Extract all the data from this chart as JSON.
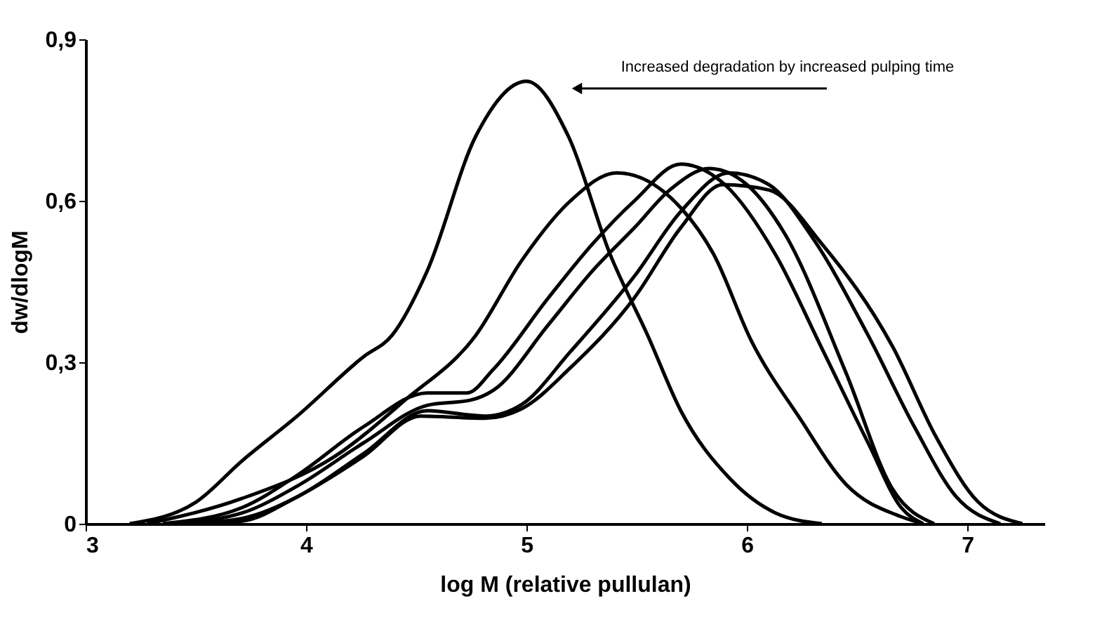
{
  "chart_data": {
    "type": "line",
    "xlabel": "log M (relative pullulan)",
    "ylabel": "dw/dlogM",
    "annotations": [
      "Increased degradation by increased pulping time"
    ],
    "xlim": [
      3,
      7.35
    ],
    "ylim": [
      0,
      0.9
    ],
    "xticks": [
      3,
      4,
      5,
      6,
      7
    ],
    "yticks": [
      0,
      {
        "value": 0.3,
        "label": "0,3"
      },
      {
        "value": 0.6,
        "label": "0,6"
      },
      {
        "value": 0.9,
        "label": "0,9"
      }
    ],
    "grid": false,
    "legend": false,
    "marker": "none",
    "line_style": "solid",
    "series": [
      {
        "color": "#000000",
        "x": [
          3.2,
          3.5,
          3.71,
          3.96,
          4.26,
          4.39,
          4.55,
          4.77,
          5.0,
          5.19,
          5.38,
          5.55,
          5.7,
          5.92,
          6.13,
          6.34
        ],
        "values": [
          0,
          0.04,
          0.117,
          0.2,
          0.31,
          0.35,
          0.47,
          0.72,
          0.822,
          0.72,
          0.5,
          0.35,
          0.21,
          0.085,
          0.02,
          0
        ]
      },
      {
        "color": "#000000",
        "x": [
          3.28,
          3.71,
          4.13,
          4.45,
          4.77,
          4.98,
          5.2,
          5.41,
          5.7,
          5.85,
          6.02,
          6.24,
          6.45,
          6.7,
          6.8
        ],
        "values": [
          0,
          0.047,
          0.125,
          0.23,
          0.35,
          0.49,
          0.6,
          0.652,
          0.587,
          0.5,
          0.34,
          0.196,
          0.073,
          0.013,
          0
        ]
      },
      {
        "color": "#000000",
        "x": [
          3.35,
          3.71,
          3.96,
          4.26,
          4.55,
          4.73,
          4.85,
          5.1,
          5.3,
          5.49,
          5.7,
          5.9,
          6.13,
          6.34,
          6.55,
          6.7,
          6.8
        ],
        "values": [
          0,
          0.03,
          0.09,
          0.18,
          0.243,
          0.243,
          0.287,
          0.42,
          0.52,
          0.6,
          0.668,
          0.63,
          0.5,
          0.326,
          0.15,
          0.03,
          0
        ]
      },
      {
        "color": "#000000",
        "x": [
          3.4,
          3.71,
          3.96,
          4.26,
          4.55,
          4.75,
          4.85,
          5.1,
          5.3,
          5.49,
          5.65,
          5.83,
          6.0,
          6.17,
          6.45,
          6.66,
          6.85
        ],
        "values": [
          0,
          0.02,
          0.07,
          0.15,
          0.22,
          0.23,
          0.248,
          0.37,
          0.47,
          0.55,
          0.62,
          0.66,
          0.63,
          0.54,
          0.28,
          0.065,
          0
        ]
      },
      {
        "color": "#000000",
        "x": [
          3.45,
          3.71,
          3.96,
          4.26,
          4.55,
          4.81,
          4.98,
          5.2,
          5.49,
          5.7,
          5.92,
          6.1,
          6.3,
          6.55,
          6.76,
          6.95,
          7.15
        ],
        "values": [
          0,
          0.01,
          0.05,
          0.13,
          0.21,
          0.2,
          0.222,
          0.32,
          0.46,
          0.58,
          0.652,
          0.63,
          0.53,
          0.35,
          0.18,
          0.05,
          0
        ]
      },
      {
        "color": "#000000",
        "x": [
          3.5,
          3.71,
          3.96,
          4.26,
          4.52,
          4.81,
          4.98,
          5.2,
          5.49,
          5.7,
          5.89,
          6.1,
          6.34,
          6.66,
          6.86,
          7.05,
          7.25
        ],
        "values": [
          0,
          0.005,
          0.05,
          0.125,
          0.2,
          0.196,
          0.214,
          0.29,
          0.42,
          0.55,
          0.63,
          0.62,
          0.52,
          0.33,
          0.16,
          0.04,
          0
        ]
      }
    ]
  }
}
